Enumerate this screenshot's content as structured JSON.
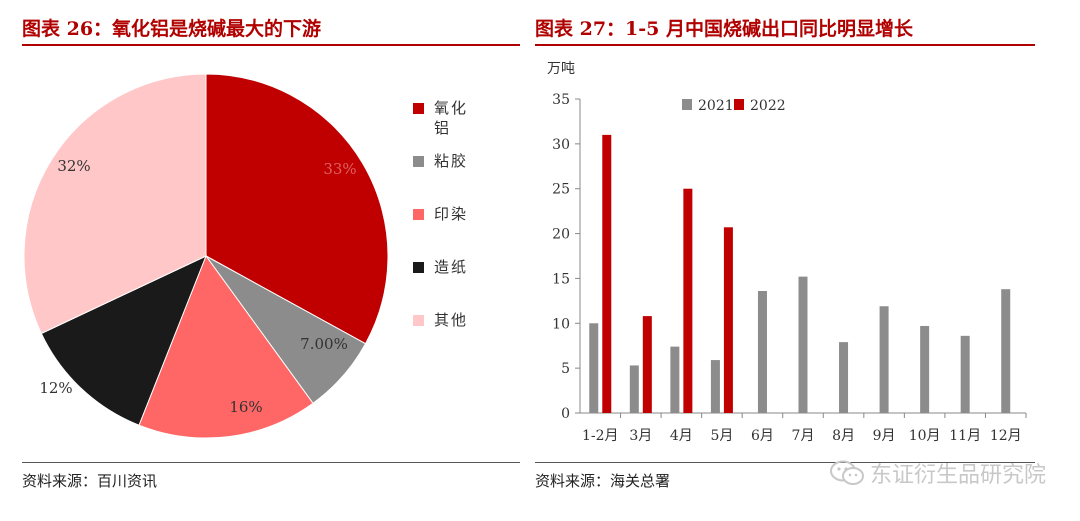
{
  "left": {
    "title": "图表 26：氧化铝是烧碱最大的下游",
    "source": "资料来源：百川资讯"
  },
  "right": {
    "title": "图表 27：1-5 月中国烧碱出口同比明显增长",
    "source": "资料来源：海关总署"
  },
  "watermark": "东证衍生品研究院",
  "chart_data": [
    {
      "type": "pie",
      "title": "图表 26：氧化铝是烧碱最大的下游",
      "slices": [
        {
          "label": "氧化铝",
          "value": 33,
          "display": "33%",
          "color": "#c00000"
        },
        {
          "label": "粘胶",
          "value": 7,
          "display": "7.00%",
          "color": "#8c8c8c"
        },
        {
          "label": "印染",
          "value": 16,
          "display": "16%",
          "color": "#ff6666"
        },
        {
          "label": "造纸",
          "value": 12,
          "display": "12%",
          "color": "#1a1a1a"
        },
        {
          "label": "其他",
          "value": 32,
          "display": "32%",
          "color": "#ffc7c7"
        }
      ],
      "legend_position": "right"
    },
    {
      "type": "bar",
      "title": "图表 27：1-5 月中国烧碱出口同比明显增长",
      "ylabel": "万吨",
      "categories": [
        "1-2月",
        "3月",
        "4月",
        "5月",
        "6月",
        "7月",
        "8月",
        "9月",
        "10月",
        "11月",
        "12月"
      ],
      "series": [
        {
          "name": "2021",
          "color": "#8c8c8c",
          "values": [
            10.0,
            5.3,
            7.4,
            5.9,
            13.6,
            15.2,
            7.9,
            11.9,
            9.7,
            8.6,
            13.8
          ]
        },
        {
          "name": "2022",
          "color": "#c00000",
          "values": [
            31.0,
            10.8,
            25.0,
            20.7,
            null,
            null,
            null,
            null,
            null,
            null,
            null
          ]
        }
      ],
      "ylim": [
        0,
        35
      ],
      "yticks": [
        0,
        5,
        10,
        15,
        20,
        25,
        30,
        35
      ],
      "grid": false,
      "legend_position": "top"
    }
  ]
}
